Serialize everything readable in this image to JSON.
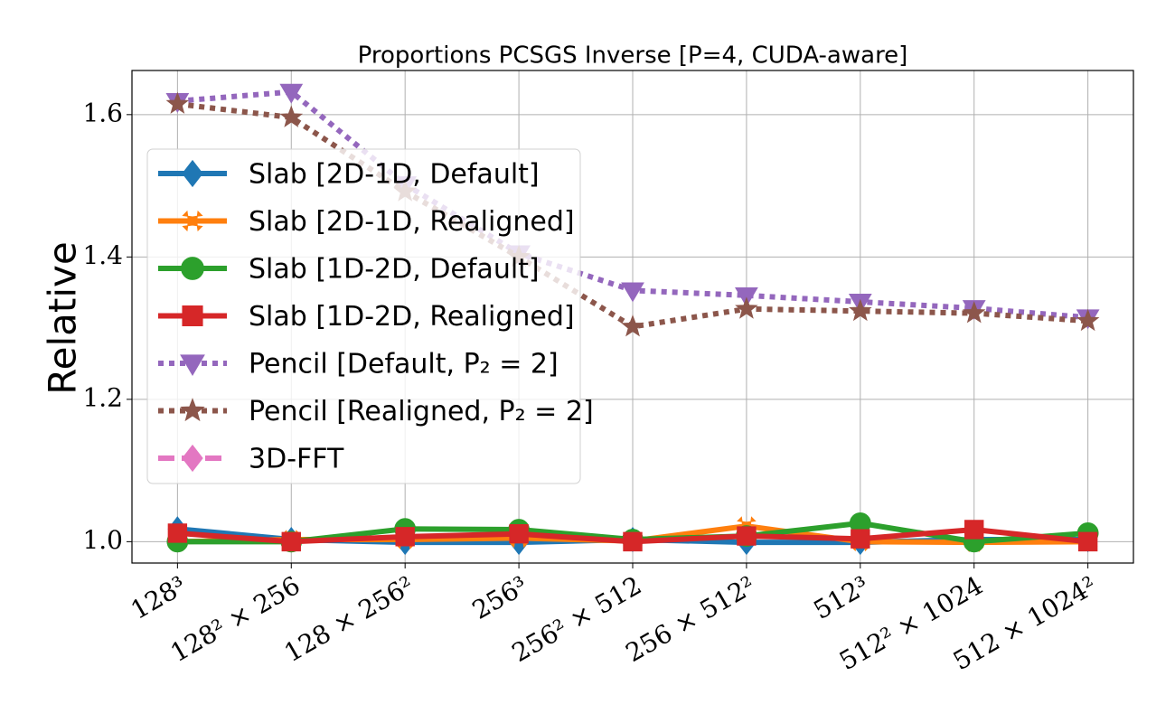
{
  "chart_data": {
    "type": "line",
    "title": "Proportions PCSGS Inverse [P=4, CUDA-aware]",
    "y_label": "Relative",
    "categories": [
      "128³",
      "128² × 256",
      "128 × 256²",
      "256³",
      "256² × 512",
      "256 × 512²",
      "512³",
      "512² × 1024",
      "512 × 1024²"
    ],
    "ylim": [
      0.97,
      1.662
    ],
    "yticks": [
      {
        "value": 1.0,
        "label": "1.0"
      },
      {
        "value": 1.2,
        "label": "1.2"
      },
      {
        "value": 1.4,
        "label": "1.4"
      },
      {
        "value": 1.6,
        "label": "1.6"
      }
    ],
    "grid": true,
    "legend": "left",
    "series": [
      {
        "name": "Slab [2D-1D, Default]",
        "color": "#1f77b4",
        "marker": "diamond",
        "linestyle": "solid",
        "values": [
          1.018,
          1.003,
          0.999,
          0.999,
          1.003,
          0.999,
          0.999,
          1.003,
          1.003
        ]
      },
      {
        "name": "Slab [2D-1D, Realigned]",
        "color": "#ff7f0e",
        "marker": "x",
        "linestyle": "solid",
        "values": [
          1.0,
          1.003,
          1.003,
          1.005,
          1.001,
          1.022,
          1.0,
          0.999,
          1.0
        ]
      },
      {
        "name": "Slab [1D-2D, Default]",
        "color": "#2ca02c",
        "marker": "circle",
        "linestyle": "solid",
        "values": [
          1.0,
          1.0,
          1.018,
          1.017,
          1.003,
          1.008,
          1.026,
          1.0,
          1.012
        ]
      },
      {
        "name": "Slab [1D-2D, Realigned]",
        "color": "#d62728",
        "marker": "square",
        "linestyle": "solid",
        "values": [
          1.012,
          1.0,
          1.007,
          1.011,
          1.0,
          1.008,
          1.004,
          1.017,
          1.0
        ]
      },
      {
        "name": "Pencil [Default, P₂ = 2]",
        "color": "#9467bd",
        "marker": "triangle-down",
        "linestyle": "dotted",
        "values": [
          1.619,
          1.632,
          1.502,
          1.405,
          1.353,
          1.346,
          1.337,
          1.328,
          1.315
        ]
      },
      {
        "name": "Pencil [Realigned, P₂ = 2]",
        "color": "#8c564b",
        "marker": "star",
        "linestyle": "dotted",
        "values": [
          1.615,
          1.596,
          1.492,
          1.4,
          1.302,
          1.327,
          1.324,
          1.321,
          1.31
        ]
      },
      {
        "name": "3D-FFT",
        "color": "#e377c2",
        "marker": "diamond",
        "linestyle": "dashed",
        "values": [
          null,
          null,
          null,
          null,
          null,
          null,
          null,
          null,
          null
        ]
      }
    ]
  }
}
